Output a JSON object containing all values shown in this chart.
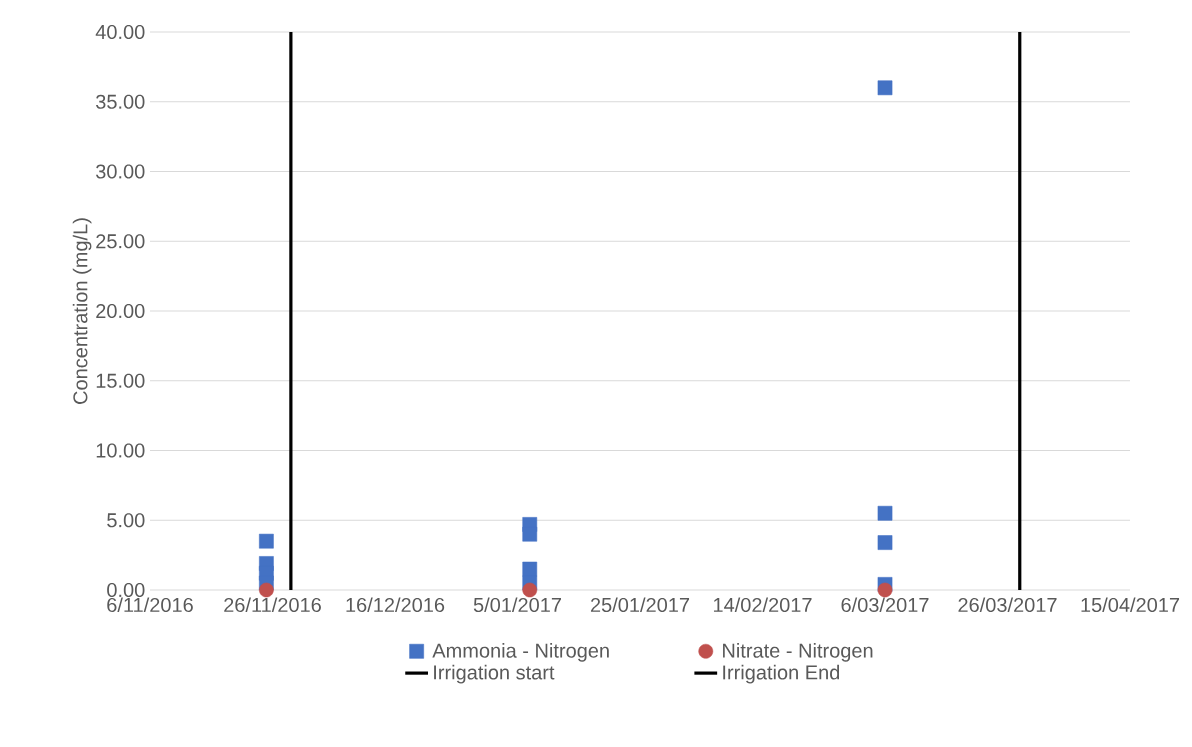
{
  "chart_data": {
    "type": "scatter",
    "ylabel": "Concentration (mg/L)",
    "series": [
      {
        "name": "Ammonia - Nitrogen",
        "color": "#4472c4",
        "marker": "square",
        "x": [
          "2016-11-25",
          "2016-11-25",
          "2016-11-25",
          "2016-11-25",
          "2017-01-07",
          "2017-01-07",
          "2017-01-07",
          "2017-01-07",
          "2017-03-06",
          "2017-03-06",
          "2017-03-06",
          "2017-03-06"
        ],
        "values": [
          3.5,
          1.9,
          1.2,
          0.5,
          4.7,
          4.0,
          1.5,
          0.5,
          36.0,
          5.5,
          3.4,
          0.4
        ]
      },
      {
        "name": "Nitrate - Nitrogen",
        "color": "#c0504d",
        "marker": "circle",
        "x": [
          "2016-11-25",
          "2017-01-07",
          "2017-03-06"
        ],
        "values": [
          0,
          0,
          0
        ]
      }
    ],
    "ref_lines": [
      {
        "axis": "x",
        "value": "2016-11-29",
        "label": "Irrigation start",
        "color": "#000000"
      },
      {
        "axis": "x",
        "value": "2017-03-28",
        "label": "Irrigation End",
        "color": "#000000"
      }
    ],
    "xlim": [
      "2016-11-06",
      "2017-04-15"
    ],
    "xticks": [
      {
        "value": "2016-11-06",
        "label": "6/11/2016"
      },
      {
        "value": "2016-11-26",
        "label": "26/11/2016"
      },
      {
        "value": "2016-12-16",
        "label": "16/12/2016"
      },
      {
        "value": "2017-01-05",
        "label": "5/01/2017"
      },
      {
        "value": "2017-01-25",
        "label": "25/01/2017"
      },
      {
        "value": "2017-02-14",
        "label": "14/02/2017"
      },
      {
        "value": "2017-03-06",
        "label": "6/03/2017"
      },
      {
        "value": "2017-03-26",
        "label": "26/03/2017"
      },
      {
        "value": "2017-04-15",
        "label": "15/04/2017"
      }
    ],
    "ylim": [
      0,
      40
    ],
    "yticks": [
      {
        "value": 0,
        "label": "0.00"
      },
      {
        "value": 5,
        "label": "5.00"
      },
      {
        "value": 10,
        "label": "10.00"
      },
      {
        "value": 15,
        "label": "15.00"
      },
      {
        "value": 20,
        "label": "20.00"
      },
      {
        "value": 25,
        "label": "25.00"
      },
      {
        "value": 30,
        "label": "30.00"
      },
      {
        "value": 35,
        "label": "35.00"
      },
      {
        "value": 40,
        "label": "40.00"
      }
    ],
    "grid": "y",
    "legend": "bottom"
  }
}
